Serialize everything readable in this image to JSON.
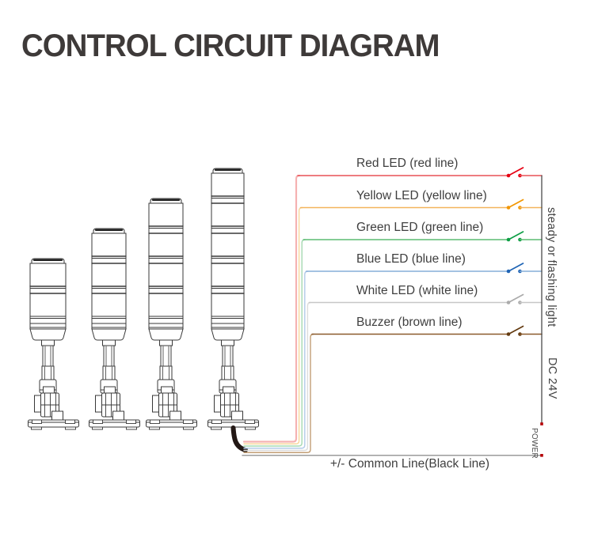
{
  "page": {
    "title": "CONTROL CIRCUIT DIAGRAM",
    "title_color": "#3e3a39",
    "background": "#ffffff"
  },
  "wiring": {
    "rows": [
      {
        "id": "red",
        "label": "Red LED (red line)",
        "line_color": "#e85156",
        "accent_color": "#e60012",
        "riser_color": "#f5b2b2"
      },
      {
        "id": "yellow",
        "label": "Yellow LED (yellow line)",
        "line_color": "#f3b45c",
        "accent_color": "#f29600",
        "riser_color": "#f8d89c"
      },
      {
        "id": "green",
        "label": "Green LED (green line)",
        "line_color": "#5bbb72",
        "accent_color": "#0e9e45",
        "riser_color": "#a5d8b1"
      },
      {
        "id": "blue",
        "label": "Blue LED (blue line)",
        "line_color": "#86add8",
        "accent_color": "#1f64b5",
        "riser_color": "#b3cbe8"
      },
      {
        "id": "white",
        "label": "White LED (white line)",
        "line_color": "#c7c7c7",
        "accent_color": "#ababab",
        "riser_color": "#dcdcdc"
      },
      {
        "id": "brown",
        "label": "Buzzer (brown line)",
        "line_color": "#8a5a2b",
        "accent_color": "#633a10",
        "riser_color": "#c29e74"
      }
    ],
    "side_label": "steady or flashing light",
    "voltage_label": "DC 24V",
    "power_label": "POWER",
    "common_label": "+/- Common Line(Black Line)",
    "label_color": "#3f3f3f",
    "bus_color": "#4a4a4a",
    "common_line_color": "#9b9b9b",
    "power_dot_color": "#b50005",
    "cable_color": "#231815"
  },
  "towers": {
    "outline_color": "#383838",
    "module_counts": [
      2,
      3,
      4,
      5
    ]
  }
}
